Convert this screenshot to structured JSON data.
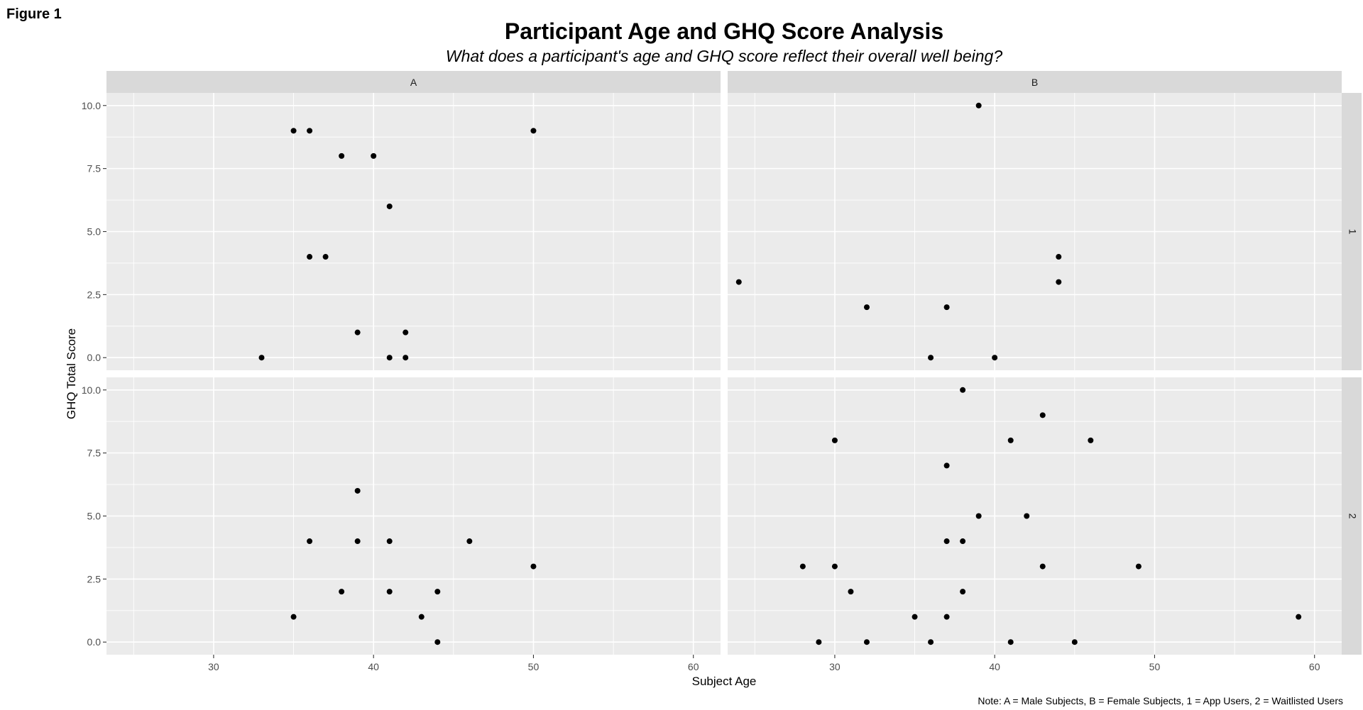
{
  "figure_label": "Figure 1",
  "note": "Note: A = Male Subjects, B = Female Subjects, 1 = App Users, 2 = Waitlisted Users",
  "chart_data": {
    "type": "scatter",
    "title": "Participant Age and GHQ Score Analysis",
    "subtitle": "What does a participant's age and GHQ score reflect their overall well being?",
    "xlabel": "Subject Age",
    "ylabel": "GHQ Total Score",
    "xlim": [
      23.3,
      61.7
    ],
    "ylim": [
      -0.5,
      10.5
    ],
    "x_ticks": [
      30,
      40,
      50,
      60
    ],
    "y_ticks": [
      0,
      2.5,
      5,
      7.5,
      10
    ],
    "x_tick_labels": [
      "30",
      "40",
      "50",
      "60"
    ],
    "y_tick_labels": [
      "0.0",
      "2.5",
      "5.0",
      "7.5",
      "10.0"
    ],
    "grid": true,
    "facet_columns": [
      "A",
      "B"
    ],
    "facet_rows": [
      "1",
      "2"
    ],
    "colors": {
      "panel": "#ebebeb",
      "strip": "#d9d9d9",
      "grid": "#ffffff",
      "point": "#000000"
    },
    "panels": [
      {
        "col": "A",
        "row": "1",
        "points": [
          [
            33,
            0
          ],
          [
            35,
            9
          ],
          [
            36,
            9
          ],
          [
            36,
            4
          ],
          [
            37,
            4
          ],
          [
            38,
            8
          ],
          [
            39,
            1
          ],
          [
            40,
            8
          ],
          [
            41,
            6
          ],
          [
            41,
            0
          ],
          [
            42,
            1
          ],
          [
            42,
            0
          ],
          [
            50,
            9
          ]
        ]
      },
      {
        "col": "B",
        "row": "1",
        "points": [
          [
            24,
            3
          ],
          [
            32,
            2
          ],
          [
            36,
            0
          ],
          [
            37,
            2
          ],
          [
            39,
            10
          ],
          [
            40,
            0
          ],
          [
            44,
            4
          ],
          [
            44,
            3
          ]
        ]
      },
      {
        "col": "A",
        "row": "2",
        "points": [
          [
            35,
            1
          ],
          [
            36,
            4
          ],
          [
            38,
            2
          ],
          [
            39,
            6
          ],
          [
            39,
            4
          ],
          [
            41,
            4
          ],
          [
            41,
            2
          ],
          [
            43,
            1
          ],
          [
            44,
            2
          ],
          [
            44,
            0
          ],
          [
            46,
            4
          ],
          [
            50,
            3
          ]
        ]
      },
      {
        "col": "B",
        "row": "2",
        "points": [
          [
            28,
            3
          ],
          [
            29,
            0
          ],
          [
            30,
            8
          ],
          [
            30,
            3
          ],
          [
            31,
            2
          ],
          [
            32,
            0
          ],
          [
            35,
            1
          ],
          [
            36,
            0
          ],
          [
            37,
            7
          ],
          [
            37,
            4
          ],
          [
            37,
            1
          ],
          [
            38,
            10
          ],
          [
            38,
            4
          ],
          [
            38,
            2
          ],
          [
            39,
            5
          ],
          [
            41,
            8
          ],
          [
            41,
            0
          ],
          [
            42,
            5
          ],
          [
            43,
            9
          ],
          [
            43,
            3
          ],
          [
            45,
            0
          ],
          [
            46,
            8
          ],
          [
            49,
            3
          ],
          [
            59,
            1
          ]
        ]
      }
    ]
  }
}
